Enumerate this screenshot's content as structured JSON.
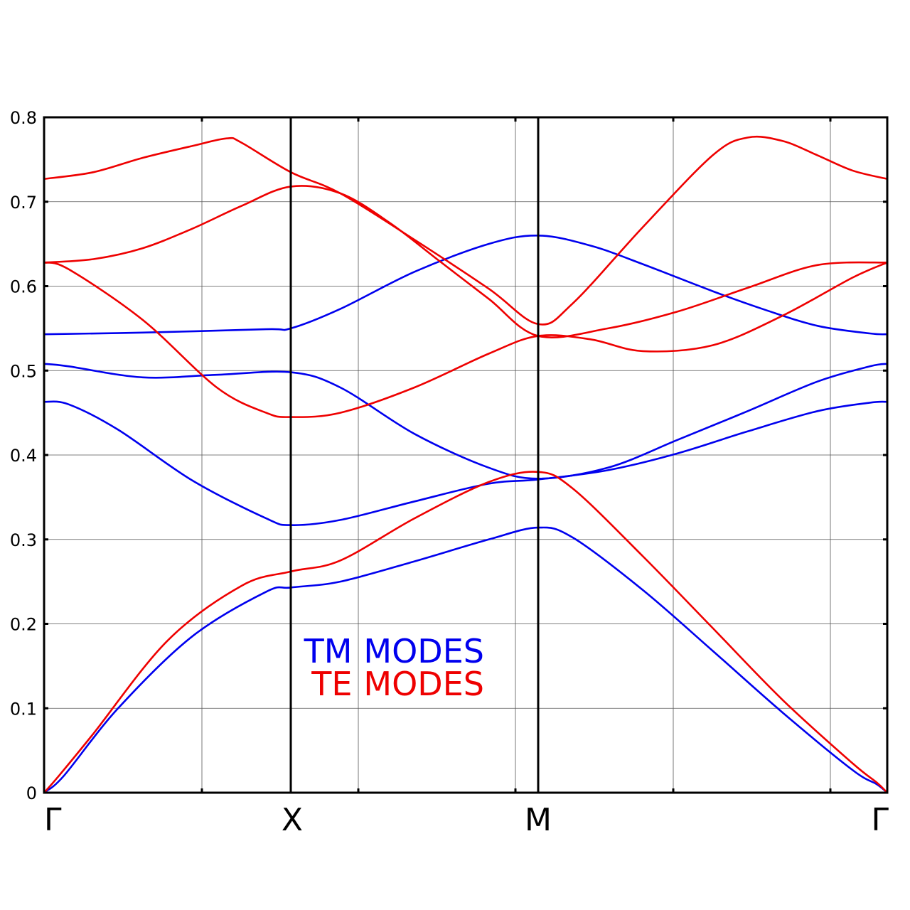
{
  "chart_data": {
    "type": "line",
    "title": "",
    "xlabel": "",
    "ylabel": "",
    "ylim": [
      0,
      0.8
    ],
    "xlim": [
      0,
      2
    ],
    "yticks": [
      0,
      0.1,
      0.2,
      0.3,
      0.4,
      0.5,
      0.6,
      0.7,
      0.8
    ],
    "ytick_labels": [
      "0",
      "0.1",
      "0.2",
      "0.3",
      "0.4",
      "0.5",
      "0.6",
      "0.7",
      "0.8"
    ],
    "kpoints": [
      {
        "label": "Γ",
        "x": 0
      },
      {
        "label": "X",
        "x": 0.5
      },
      {
        "label": "M",
        "x": 1
      },
      {
        "label": "Γ",
        "x": 2
      }
    ],
    "grid": true,
    "legend": [
      {
        "prefix": "TM",
        "suffix": "MODES",
        "color": "#0000ee"
      },
      {
        "prefix": "TE",
        "suffix": "MODES",
        "color": "#ee0000"
      }
    ],
    "series": [
      {
        "mode": "TM",
        "color": "#0000ee",
        "x": [
          0,
          0.04,
          0.15,
          0.3,
          0.45,
          0.5,
          0.6,
          0.75,
          0.9,
          1.0,
          1.1,
          1.3,
          1.5,
          1.7,
          1.9,
          1.97,
          2.0
        ],
        "y": [
          0,
          0.02,
          0.1,
          0.185,
          0.238,
          0.243,
          0.25,
          0.274,
          0.3,
          0.314,
          0.302,
          0.24,
          0.168,
          0.095,
          0.027,
          0.01,
          0
        ]
      },
      {
        "mode": "TM",
        "color": "#0000ee",
        "x": [
          0,
          0.05,
          0.15,
          0.3,
          0.45,
          0.5,
          0.6,
          0.75,
          0.9,
          1.0,
          1.2,
          1.4,
          1.6,
          1.8,
          1.95,
          2.0
        ],
        "y": [
          0.463,
          0.46,
          0.43,
          0.37,
          0.325,
          0.317,
          0.323,
          0.345,
          0.366,
          0.371,
          0.382,
          0.402,
          0.428,
          0.452,
          0.462,
          0.463
        ]
      },
      {
        "mode": "TM",
        "color": "#0000ee",
        "x": [
          0,
          0.05,
          0.2,
          0.35,
          0.5,
          0.6,
          0.75,
          0.9,
          1.0,
          1.2,
          1.4,
          1.6,
          1.8,
          1.95,
          2.0
        ],
        "y": [
          0.508,
          0.505,
          0.492,
          0.495,
          0.498,
          0.48,
          0.425,
          0.385,
          0.372,
          0.385,
          0.418,
          0.452,
          0.487,
          0.505,
          0.508
        ]
      },
      {
        "mode": "TM",
        "color": "#0000ee",
        "x": [
          0,
          0.2,
          0.45,
          0.5,
          0.6,
          0.75,
          0.9,
          1.0,
          1.15,
          1.3,
          1.5,
          1.65,
          1.8,
          1.95,
          2.0
        ],
        "y": [
          0.543,
          0.545,
          0.549,
          0.55,
          0.573,
          0.617,
          0.65,
          0.66,
          0.648,
          0.626,
          0.594,
          0.572,
          0.553,
          0.544,
          0.543
        ]
      },
      {
        "mode": "TE",
        "color": "#ee0000",
        "x": [
          0,
          0.03,
          0.1,
          0.25,
          0.4,
          0.5,
          0.6,
          0.75,
          0.9,
          1.0,
          1.1,
          1.3,
          1.5,
          1.7,
          1.9,
          1.97,
          2.0
        ],
        "y": [
          0,
          0.02,
          0.07,
          0.18,
          0.245,
          0.262,
          0.275,
          0.325,
          0.368,
          0.38,
          0.36,
          0.28,
          0.195,
          0.11,
          0.035,
          0.012,
          0
        ]
      },
      {
        "mode": "TE",
        "color": "#ee0000",
        "x": [
          0,
          0.05,
          0.2,
          0.35,
          0.45,
          0.5,
          0.6,
          0.75,
          0.9,
          1.0,
          1.15,
          1.3,
          1.5,
          1.7,
          1.9,
          2.0
        ],
        "y": [
          0.628,
          0.62,
          0.56,
          0.48,
          0.45,
          0.445,
          0.45,
          0.48,
          0.52,
          0.541,
          0.537,
          0.523,
          0.53,
          0.565,
          0.61,
          0.628
        ]
      },
      {
        "mode": "TE",
        "color": "#ee0000",
        "x": [
          0,
          0.1,
          0.2,
          0.3,
          0.4,
          0.5,
          0.6,
          0.7,
          0.8,
          0.9,
          1.0,
          1.2,
          1.4,
          1.6,
          1.8,
          2.0
        ],
        "y": [
          0.628,
          0.632,
          0.645,
          0.668,
          0.695,
          0.718,
          0.71,
          0.675,
          0.63,
          0.585,
          0.541,
          0.55,
          0.57,
          0.598,
          0.625,
          0.628
        ]
      },
      {
        "mode": "TE",
        "color": "#ee0000",
        "x": [
          0,
          0.1,
          0.2,
          0.3,
          0.37,
          0.4,
          0.5,
          0.6,
          0.75,
          0.9,
          1.0,
          1.1,
          1.3,
          1.5,
          1.6,
          1.7,
          1.8,
          1.9,
          2.0
        ],
        "y": [
          0.727,
          0.735,
          0.752,
          0.766,
          0.775,
          0.77,
          0.735,
          0.71,
          0.655,
          0.597,
          0.555,
          0.58,
          0.67,
          0.755,
          0.776,
          0.772,
          0.755,
          0.737,
          0.727
        ]
      }
    ]
  }
}
